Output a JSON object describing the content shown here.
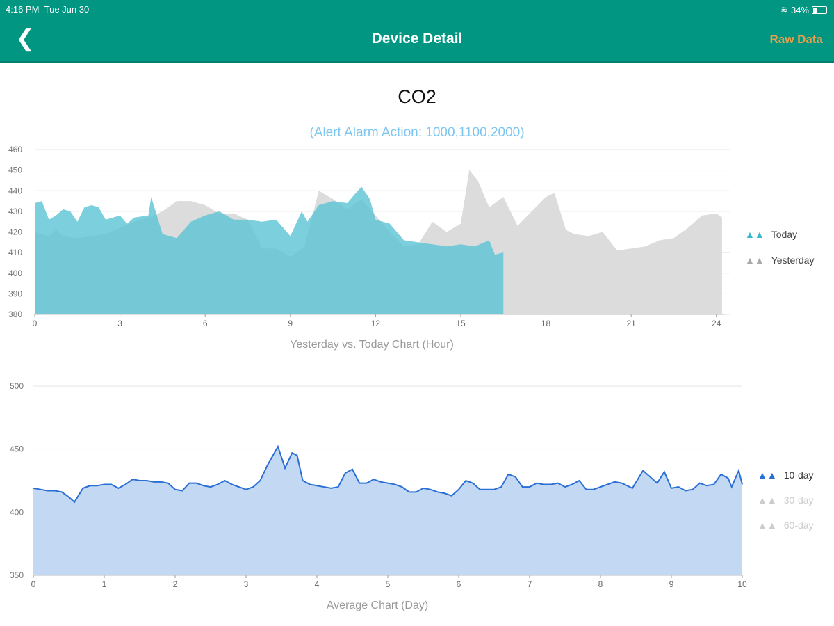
{
  "status_bar": {
    "time": "4:16 PM",
    "date": "Tue Jun 30",
    "battery": "34%",
    "battery_level": 0.34
  },
  "header": {
    "title": "Device Detail",
    "right_button": "Raw Data",
    "back_icon": "chevron-left-icon"
  },
  "page": {
    "metric": "CO2",
    "alert": "(Alert Alarm Action: 1000,1100,2000)"
  },
  "chart_data": [
    {
      "type": "area",
      "title": "",
      "xlabel": "Yesterday vs. Today Chart (Hour)",
      "ylabel": "",
      "xlim": [
        0,
        24.3
      ],
      "ylim": [
        380,
        460
      ],
      "xticks": [
        "0",
        "3",
        "6",
        "9",
        "12",
        "15",
        "18",
        "21",
        "24"
      ],
      "yticks": [
        "380",
        "390",
        "400",
        "410",
        "420",
        "430",
        "440",
        "450",
        "460"
      ],
      "grid": true,
      "legend": "right",
      "series": [
        {
          "name": "Today",
          "color": "#5bc4d6",
          "x": [
            0,
            0.25,
            0.5,
            0.75,
            1,
            1.25,
            1.5,
            1.75,
            2,
            2.25,
            2.5,
            3,
            3.25,
            3.5,
            4,
            4.1,
            4.3,
            4.5,
            5,
            5.5,
            6,
            6.5,
            7,
            7.5,
            8,
            8.5,
            9,
            9.4,
            9.6,
            10,
            10.5,
            11,
            11.5,
            11.8,
            12,
            12.5,
            13,
            13.5,
            14,
            14.5,
            15,
            15.5,
            16,
            16.2,
            16.5
          ],
          "y": [
            434,
            435,
            426,
            428,
            431,
            430,
            425,
            432,
            433,
            432,
            426,
            428,
            424,
            427,
            428,
            437,
            428,
            419,
            417,
            425,
            428,
            430,
            426,
            426,
            425,
            426,
            418,
            430,
            425,
            433,
            435,
            434,
            442,
            436,
            426,
            424,
            416,
            415,
            414,
            413,
            414,
            413,
            416,
            409,
            410
          ]
        },
        {
          "name": "Yesterday",
          "color": "#d6d6d6",
          "x": [
            0,
            0.5,
            0.75,
            1,
            1.5,
            2,
            2.5,
            3,
            3.5,
            4,
            4.5,
            5,
            5.5,
            6,
            6.5,
            7,
            7.5,
            8,
            8.5,
            9,
            9.5,
            10,
            10.5,
            11,
            11.5,
            12,
            12.5,
            13,
            13.5,
            14,
            14.5,
            15,
            15.3,
            15.6,
            16,
            16.5,
            17,
            17.5,
            18,
            18.3,
            18.7,
            19,
            19.5,
            20,
            20.5,
            21,
            21.5,
            22,
            22.5,
            23,
            23.5,
            24,
            24.2
          ],
          "y": [
            420,
            418,
            421,
            418,
            417,
            418,
            419,
            422,
            425,
            427,
            430,
            435,
            435,
            433,
            429,
            429,
            426,
            412,
            412,
            408,
            413,
            440,
            436,
            431,
            436,
            428,
            420,
            413,
            414,
            425,
            420,
            424,
            450,
            445,
            432,
            437,
            423,
            430,
            437,
            439,
            421,
            419,
            418,
            420,
            411,
            412,
            413,
            416,
            417,
            422,
            428,
            429,
            427
          ]
        }
      ]
    },
    {
      "type": "area",
      "title": "",
      "xlabel": "Average Chart (Day)",
      "ylabel": "",
      "xlim": [
        0,
        10
      ],
      "ylim": [
        350,
        500
      ],
      "xticks": [
        "0",
        "1",
        "2",
        "3",
        "4",
        "5",
        "6",
        "7",
        "8",
        "9",
        "10"
      ],
      "yticks": [
        "350",
        "400",
        "450",
        "500"
      ],
      "grid": true,
      "legend": "right",
      "series": [
        {
          "name": "10-day",
          "color": "#2a6fd6",
          "active": true,
          "x": [
            0,
            0.1,
            0.2,
            0.3,
            0.4,
            0.5,
            0.58,
            0.7,
            0.8,
            0.9,
            1,
            1.1,
            1.2,
            1.3,
            1.4,
            1.5,
            1.6,
            1.7,
            1.8,
            1.9,
            2,
            2.1,
            2.2,
            2.3,
            2.4,
            2.5,
            2.6,
            2.7,
            2.8,
            2.9,
            3,
            3.1,
            3.2,
            3.3,
            3.45,
            3.55,
            3.65,
            3.72,
            3.8,
            3.9,
            4,
            4.1,
            4.2,
            4.3,
            4.4,
            4.5,
            4.6,
            4.7,
            4.8,
            4.9,
            5,
            5.1,
            5.2,
            5.3,
            5.4,
            5.5,
            5.6,
            5.7,
            5.8,
            5.9,
            6,
            6.1,
            6.2,
            6.3,
            6.4,
            6.5,
            6.6,
            6.7,
            6.8,
            6.9,
            7,
            7.1,
            7.2,
            7.3,
            7.4,
            7.5,
            7.6,
            7.7,
            7.8,
            7.9,
            8,
            8.1,
            8.2,
            8.3,
            8.45,
            8.6,
            8.7,
            8.8,
            8.9,
            9,
            9.1,
            9.2,
            9.3,
            9.4,
            9.5,
            9.6,
            9.7,
            9.8,
            9.85,
            9.95,
            10
          ],
          "y": [
            419,
            418,
            417,
            417,
            416,
            412,
            408,
            419,
            421,
            421,
            422,
            422,
            419,
            422,
            426,
            425,
            425,
            424,
            424,
            423,
            418,
            417,
            423,
            423,
            421,
            420,
            422,
            425,
            422,
            420,
            418,
            420,
            425,
            437,
            452,
            435,
            447,
            445,
            425,
            422,
            421,
            420,
            419,
            420,
            431,
            434,
            423,
            423,
            426,
            424,
            423,
            422,
            420,
            416,
            416,
            419,
            418,
            416,
            415,
            413,
            418,
            425,
            423,
            418,
            418,
            418,
            420,
            430,
            428,
            420,
            420,
            423,
            422,
            422,
            423,
            420,
            422,
            425,
            418,
            418,
            420,
            422,
            424,
            423,
            419,
            433,
            428,
            423,
            432,
            419,
            420,
            417,
            418,
            423,
            421,
            422,
            430,
            427,
            420,
            433,
            422
          ]
        },
        {
          "name": "30-day",
          "color": "#cccccc",
          "active": false
        },
        {
          "name": "60-day",
          "color": "#cccccc",
          "active": false
        }
      ]
    }
  ]
}
